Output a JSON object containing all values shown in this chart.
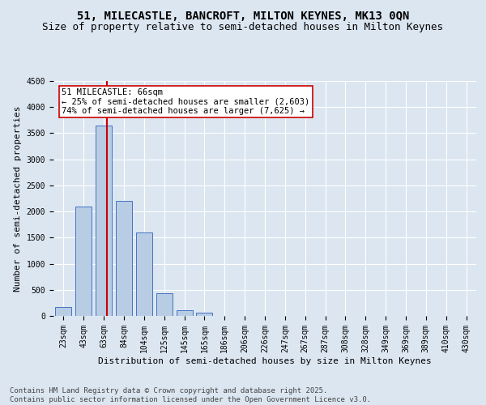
{
  "title": "51, MILECASTLE, BANCROFT, MILTON KEYNES, MK13 0QN",
  "subtitle": "Size of property relative to semi-detached houses in Milton Keynes",
  "xlabel": "Distribution of semi-detached houses by size in Milton Keynes",
  "ylabel": "Number of semi-detached properties",
  "categories": [
    "23sqm",
    "43sqm",
    "63sqm",
    "84sqm",
    "104sqm",
    "125sqm",
    "145sqm",
    "165sqm",
    "186sqm",
    "206sqm",
    "226sqm",
    "247sqm",
    "267sqm",
    "287sqm",
    "308sqm",
    "328sqm",
    "349sqm",
    "369sqm",
    "389sqm",
    "410sqm",
    "430sqm"
  ],
  "values": [
    170,
    2100,
    3650,
    2200,
    1600,
    430,
    105,
    55,
    0,
    0,
    0,
    0,
    0,
    0,
    0,
    0,
    0,
    0,
    0,
    0,
    0
  ],
  "bar_color": "#b8cce4",
  "bar_edge_color": "#4472c4",
  "vline_x": 2.15,
  "annotation_line1": "51 MILECASTLE: 66sqm",
  "annotation_line2": "← 25% of semi-detached houses are smaller (2,603)",
  "annotation_line3": "74% of semi-detached houses are larger (7,625) →",
  "vline_color": "#cc0000",
  "ylim": [
    0,
    4500
  ],
  "yticks": [
    0,
    500,
    1000,
    1500,
    2000,
    2500,
    3000,
    3500,
    4000,
    4500
  ],
  "footer": "Contains HM Land Registry data © Crown copyright and database right 2025.\nContains public sector information licensed under the Open Government Licence v3.0.",
  "bg_color": "#dce6f1",
  "title_fontsize": 10,
  "subtitle_fontsize": 9,
  "axis_label_fontsize": 8,
  "tick_fontsize": 7,
  "footer_fontsize": 6.5,
  "annot_fontsize": 7.5
}
